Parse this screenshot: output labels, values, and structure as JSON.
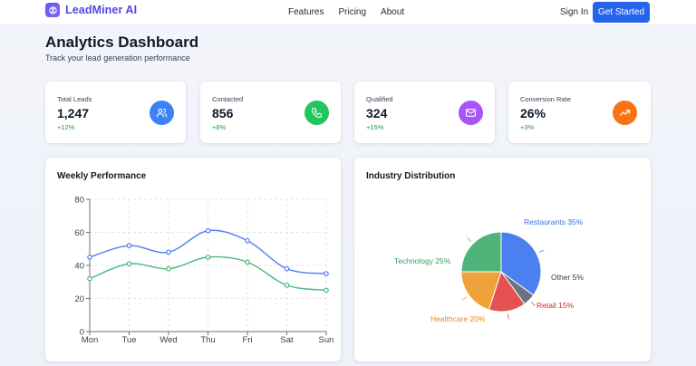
{
  "nav": {
    "brand": "LeadMiner AI",
    "links": [
      "Features",
      "Pricing",
      "About"
    ],
    "signin": "Sign In",
    "cta": "Get Started"
  },
  "page": {
    "title": "Analytics Dashboard",
    "subtitle": "Track your lead generation performance"
  },
  "stats": [
    {
      "label": "Total Leads",
      "value": "1,247",
      "change": "+12%",
      "icon": "users-icon",
      "color": "#3b82f6"
    },
    {
      "label": "Contacted",
      "value": "856",
      "change": "+8%",
      "icon": "phone-icon",
      "color": "#22c55e"
    },
    {
      "label": "Qualified",
      "value": "324",
      "change": "+15%",
      "icon": "mail-icon",
      "color": "#a855f7"
    },
    {
      "label": "Conversion Rate",
      "value": "26%",
      "change": "+3%",
      "icon": "trending-up-icon",
      "color": "#f97316"
    }
  ],
  "colors": {
    "brand": "#4f46e5",
    "cta": "#2563eb",
    "positive": "#16a34a"
  },
  "chart_data": [
    {
      "type": "line",
      "title": "Weekly Performance",
      "x": [
        "Mon",
        "Tue",
        "Wed",
        "Thu",
        "Fri",
        "Sat",
        "Sun"
      ],
      "ylim": [
        0,
        80
      ],
      "yticks": [
        0,
        20,
        40,
        60,
        80
      ],
      "grid": true,
      "series": [
        {
          "values": [
            45,
            52,
            48,
            61,
            55,
            38,
            35
          ],
          "color": "#4f7cf0"
        },
        {
          "values": [
            32,
            41,
            38,
            45,
            42,
            28,
            25
          ],
          "color": "#4cb77a"
        }
      ]
    },
    {
      "type": "pie",
      "title": "Industry Distribution",
      "slices": [
        {
          "label": "Restaurants",
          "value": 35,
          "color": "#4a80f0",
          "label_color": "#3b6fe0"
        },
        {
          "label": "Other",
          "value": 5,
          "color": "#6b7280",
          "label_color": "#374151"
        },
        {
          "label": "Retail",
          "value": 15,
          "color": "#e35151",
          "label_color": "#dc2626"
        },
        {
          "label": "Healthcare",
          "value": 20,
          "color": "#f0a23a",
          "label_color": "#ea8a0c"
        },
        {
          "label": "Technology",
          "value": 25,
          "color": "#4fb37a",
          "label_color": "#3a9a60"
        }
      ]
    }
  ]
}
